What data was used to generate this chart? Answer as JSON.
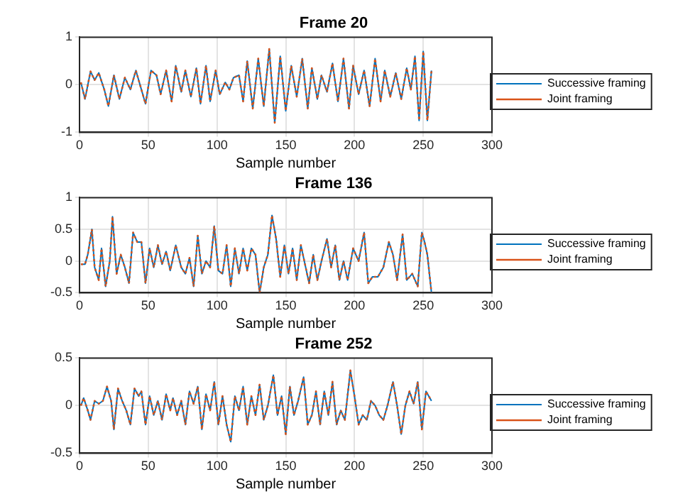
{
  "chart_data": [
    {
      "type": "line",
      "title": "Frame 20",
      "xlabel": "Sample number",
      "xlim": [
        0,
        300
      ],
      "xticks": [
        0,
        50,
        100,
        150,
        200,
        250,
        300
      ],
      "ylim": [
        -1,
        1
      ],
      "yticks": [
        -1,
        0,
        1
      ],
      "grid": true,
      "legend": "right",
      "x": [
        1,
        4,
        8,
        11,
        14,
        18,
        21,
        25,
        29,
        33,
        37,
        41,
        45,
        48,
        52,
        56,
        59,
        63,
        67,
        70,
        74,
        77,
        81,
        85,
        88,
        92,
        95,
        99,
        102,
        106,
        109,
        112,
        116,
        119,
        122,
        126,
        130,
        134,
        138,
        142,
        146,
        150,
        154,
        158,
        162,
        166,
        169,
        173,
        176,
        180,
        184,
        188,
        192,
        196,
        199,
        203,
        207,
        211,
        215,
        219,
        222,
        226,
        230,
        234,
        238,
        241,
        244,
        247,
        250,
        253,
        256
      ],
      "series": [
        {
          "name": "Successive framing",
          "color": "#0072bd",
          "line_style": "solid",
          "values": [
            0.05,
            -0.3,
            0.28,
            0.1,
            0.25,
            -0.1,
            -0.45,
            0.2,
            -0.3,
            0.15,
            -0.1,
            0.3,
            -0.1,
            -0.4,
            0.3,
            0.2,
            -0.2,
            0.3,
            -0.35,
            0.4,
            -0.15,
            0.3,
            -0.25,
            0.35,
            -0.4,
            0.4,
            -0.35,
            0.3,
            -0.2,
            0.05,
            -0.1,
            0.15,
            0.2,
            -0.35,
            0.5,
            -0.5,
            0.55,
            -0.45,
            0.75,
            -0.8,
            0.6,
            -0.55,
            0.4,
            -0.25,
            0.55,
            -0.5,
            0.35,
            -0.3,
            0.2,
            -0.15,
            0.45,
            -0.35,
            0.55,
            -0.5,
            0.4,
            -0.2,
            0.3,
            -0.45,
            0.55,
            -0.35,
            0.3,
            -0.25,
            0.25,
            -0.3,
            0.35,
            -0.1,
            0.6,
            -0.75,
            0.7,
            -0.75,
            0.3
          ]
        },
        {
          "name": "Joint framing",
          "color": "#d95319",
          "line_style": "dotted",
          "values": [
            0.05,
            -0.3,
            0.28,
            0.1,
            0.25,
            -0.1,
            -0.45,
            0.2,
            -0.3,
            0.15,
            -0.1,
            0.3,
            -0.1,
            -0.4,
            0.3,
            0.2,
            -0.2,
            0.3,
            -0.35,
            0.4,
            -0.15,
            0.3,
            -0.25,
            0.35,
            -0.4,
            0.4,
            -0.35,
            0.3,
            -0.2,
            0.05,
            -0.1,
            0.15,
            0.2,
            -0.35,
            0.5,
            -0.5,
            0.55,
            -0.45,
            0.75,
            -0.8,
            0.6,
            -0.55,
            0.4,
            -0.25,
            0.55,
            -0.5,
            0.35,
            -0.3,
            0.2,
            -0.15,
            0.45,
            -0.35,
            0.55,
            -0.5,
            0.4,
            -0.2,
            0.3,
            -0.45,
            0.55,
            -0.35,
            0.3,
            -0.25,
            0.25,
            -0.3,
            0.35,
            -0.1,
            0.6,
            -0.75,
            0.7,
            -0.75,
            0.3
          ]
        }
      ]
    },
    {
      "type": "line",
      "title": "Frame 136",
      "xlabel": "Sample number",
      "xlim": [
        0,
        300
      ],
      "xticks": [
        0,
        50,
        100,
        150,
        200,
        250,
        300
      ],
      "ylim": [
        -0.5,
        1
      ],
      "yticks": [
        -0.5,
        0,
        0.5,
        1
      ],
      "grid": true,
      "legend": "right",
      "x": [
        1,
        4,
        6,
        9,
        11,
        14,
        16,
        19,
        22,
        24,
        27,
        30,
        33,
        36,
        39,
        42,
        45,
        48,
        51,
        54,
        57,
        60,
        63,
        66,
        70,
        74,
        77,
        80,
        83,
        86,
        89,
        92,
        95,
        98,
        101,
        104,
        107,
        110,
        113,
        116,
        119,
        122,
        125,
        128,
        131,
        134,
        137,
        140,
        143,
        146,
        149,
        152,
        155,
        158,
        161,
        164,
        167,
        170,
        173,
        176,
        180,
        183,
        186,
        189,
        192,
        195,
        199,
        203,
        207,
        210,
        213,
        217,
        221,
        225,
        228,
        231,
        235,
        238,
        242,
        246,
        249,
        251,
        253,
        256
      ],
      "series": [
        {
          "name": "Successive framing",
          "color": "#0072bd",
          "line_style": "solid",
          "values": [
            -0.05,
            -0.05,
            0.1,
            0.5,
            -0.1,
            -0.3,
            0.2,
            -0.4,
            0.0,
            0.7,
            -0.2,
            0.1,
            -0.1,
            -0.35,
            0.45,
            0.3,
            0.3,
            -0.35,
            0.2,
            -0.1,
            0.25,
            -0.05,
            0.15,
            -0.15,
            0.25,
            -0.1,
            -0.2,
            0.05,
            -0.4,
            0.4,
            -0.2,
            0.0,
            -0.1,
            0.55,
            -0.15,
            -0.2,
            0.25,
            -0.4,
            0.2,
            -0.2,
            0.2,
            -0.15,
            0.2,
            0.1,
            -0.5,
            -0.1,
            0.1,
            0.72,
            0.35,
            -0.25,
            0.25,
            -0.2,
            0.2,
            -0.3,
            0.25,
            -0.05,
            -0.35,
            0.1,
            -0.3,
            0.0,
            0.35,
            -0.1,
            0.25,
            -0.3,
            0.0,
            -0.3,
            0.2,
            0.0,
            0.45,
            -0.35,
            -0.25,
            -0.25,
            -0.1,
            0.3,
            0.1,
            -0.3,
            0.42,
            -0.3,
            -0.2,
            -0.4,
            0.45,
            0.3,
            0.1,
            -0.5
          ]
        },
        {
          "name": "Joint framing",
          "color": "#d95319",
          "line_style": "dotted",
          "values": [
            -0.05,
            -0.05,
            0.1,
            0.5,
            -0.1,
            -0.3,
            0.2,
            -0.4,
            0.0,
            0.7,
            -0.2,
            0.1,
            -0.1,
            -0.35,
            0.45,
            0.3,
            0.3,
            -0.35,
            0.2,
            -0.1,
            0.25,
            -0.05,
            0.15,
            -0.15,
            0.25,
            -0.1,
            -0.2,
            0.05,
            -0.4,
            0.4,
            -0.2,
            0.0,
            -0.1,
            0.55,
            -0.15,
            -0.2,
            0.25,
            -0.4,
            0.2,
            -0.2,
            0.2,
            -0.15,
            0.2,
            0.1,
            -0.5,
            -0.1,
            0.1,
            0.72,
            0.35,
            -0.25,
            0.25,
            -0.2,
            0.2,
            -0.3,
            0.25,
            -0.05,
            -0.35,
            0.1,
            -0.3,
            0.0,
            0.35,
            -0.1,
            0.25,
            -0.3,
            0.0,
            -0.3,
            0.2,
            0.0,
            0.45,
            -0.35,
            -0.25,
            -0.25,
            -0.1,
            0.3,
            0.1,
            -0.3,
            0.42,
            -0.3,
            -0.2,
            -0.4,
            0.45,
            0.3,
            0.1,
            -0.5
          ]
        }
      ]
    },
    {
      "type": "line",
      "title": "Frame 252",
      "xlabel": "Sample number",
      "xlim": [
        0,
        300
      ],
      "xticks": [
        0,
        50,
        100,
        150,
        200,
        250,
        300
      ],
      "ylim": [
        -0.5,
        0.5
      ],
      "yticks": [
        -0.5,
        0,
        0.5
      ],
      "grid": true,
      "legend": "right",
      "x": [
        1,
        3,
        6,
        8,
        11,
        14,
        17,
        20,
        23,
        25,
        28,
        31,
        34,
        37,
        40,
        43,
        45,
        48,
        51,
        54,
        57,
        60,
        63,
        66,
        68,
        71,
        74,
        77,
        80,
        83,
        86,
        89,
        92,
        95,
        98,
        101,
        104,
        107,
        110,
        113,
        116,
        119,
        122,
        125,
        128,
        131,
        134,
        137,
        141,
        144,
        147,
        150,
        153,
        156,
        159,
        163,
        166,
        169,
        172,
        175,
        178,
        181,
        184,
        187,
        190,
        193,
        197,
        200,
        203,
        206,
        209,
        212,
        215,
        218,
        221,
        224,
        228,
        231,
        234,
        237,
        240,
        243,
        246,
        249,
        252,
        256
      ],
      "series": [
        {
          "name": "Successive framing",
          "color": "#0072bd",
          "line_style": "solid",
          "values": [
            0.0,
            0.08,
            -0.05,
            -0.15,
            0.05,
            0.02,
            0.05,
            0.2,
            0.05,
            -0.25,
            0.18,
            0.05,
            -0.05,
            -0.2,
            0.18,
            0.1,
            0.15,
            -0.2,
            0.1,
            -0.1,
            0.05,
            -0.15,
            0.12,
            -0.05,
            0.08,
            -0.1,
            0.05,
            -0.2,
            0.15,
            0.02,
            0.2,
            -0.25,
            0.12,
            -0.05,
            0.25,
            -0.2,
            0.1,
            -0.2,
            -0.38,
            0.1,
            -0.05,
            0.2,
            -0.2,
            0.1,
            -0.1,
            0.22,
            -0.15,
            0.0,
            0.32,
            -0.1,
            0.1,
            -0.3,
            0.2,
            -0.1,
            0.05,
            0.3,
            -0.2,
            -0.1,
            0.15,
            -0.2,
            0.15,
            -0.1,
            0.25,
            -0.2,
            -0.05,
            -0.15,
            0.37,
            0.1,
            -0.2,
            -0.1,
            -0.15,
            0.05,
            0.0,
            -0.1,
            -0.15,
            0.0,
            0.25,
            0.0,
            -0.3,
            0.0,
            0.15,
            0.02,
            0.25,
            -0.25,
            0.15,
            0.05
          ]
        },
        {
          "name": "Joint framing",
          "color": "#d95319",
          "line_style": "dotted",
          "values": [
            0.0,
            0.08,
            -0.05,
            -0.15,
            0.05,
            0.02,
            0.05,
            0.2,
            0.05,
            -0.25,
            0.18,
            0.05,
            -0.05,
            -0.2,
            0.18,
            0.1,
            0.15,
            -0.2,
            0.1,
            -0.1,
            0.05,
            -0.15,
            0.12,
            -0.05,
            0.08,
            -0.1,
            0.05,
            -0.2,
            0.15,
            0.02,
            0.2,
            -0.25,
            0.12,
            -0.05,
            0.25,
            -0.2,
            0.1,
            -0.2,
            -0.38,
            0.1,
            -0.05,
            0.2,
            -0.2,
            0.1,
            -0.1,
            0.22,
            -0.15,
            0.0,
            0.32,
            -0.1,
            0.1,
            -0.3,
            0.2,
            -0.1,
            0.05,
            0.3,
            -0.2,
            -0.1,
            0.15,
            -0.2,
            0.15,
            -0.1,
            0.25,
            -0.2,
            -0.05,
            -0.15,
            0.37,
            0.1,
            -0.2,
            -0.1,
            -0.15,
            0.05,
            0.0,
            -0.1,
            -0.15,
            0.0,
            0.25,
            0.0,
            -0.3,
            0.0,
            0.15,
            0.02,
            0.25,
            -0.25,
            0.15,
            0.05
          ]
        }
      ]
    }
  ]
}
